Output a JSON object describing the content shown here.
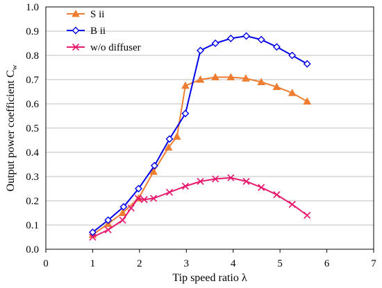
{
  "chart_data": {
    "type": "line",
    "xlabel": "Tip speed  ratio λ",
    "ylabel": "Output power coefficient C",
    "ylabel_sub": "w",
    "xlim": [
      0,
      7
    ],
    "ylim": [
      0,
      1.0
    ],
    "x_ticks": [
      "0",
      "1",
      "2",
      "3",
      "4",
      "5",
      "6",
      "7"
    ],
    "y_ticks": [
      "0.0",
      "0.1",
      "0.2",
      "0.3",
      "0.4",
      "0.5",
      "0.6",
      "0.7",
      "0.8",
      "0.9",
      "1.0"
    ],
    "grid": "horizontal",
    "legend_position": "top-left",
    "series": [
      {
        "name": "S ii",
        "color": "#ED7D31",
        "marker": "triangle",
        "x": [
          1.0,
          1.33,
          1.64,
          1.98,
          2.3,
          2.62,
          2.8,
          2.98,
          3.3,
          3.62,
          3.95,
          4.27,
          4.6,
          4.93,
          5.26,
          5.58
        ],
        "y": [
          0.06,
          0.105,
          0.15,
          0.21,
          0.32,
          0.42,
          0.465,
          0.675,
          0.7,
          0.71,
          0.71,
          0.705,
          0.69,
          0.67,
          0.645,
          0.61
        ]
      },
      {
        "name": "B ii",
        "color": "#0000E6",
        "marker": "diamond",
        "x": [
          1.0,
          1.33,
          1.66,
          1.98,
          2.32,
          2.64,
          2.98,
          3.3,
          3.62,
          3.95,
          4.28,
          4.6,
          4.93,
          5.26,
          5.58
        ],
        "y": [
          0.07,
          0.12,
          0.175,
          0.25,
          0.345,
          0.455,
          0.56,
          0.82,
          0.85,
          0.87,
          0.88,
          0.865,
          0.835,
          0.8,
          0.765
        ]
      },
      {
        "name": "w/o diffuser",
        "color": "#E6196E",
        "marker": "x",
        "x": [
          1.0,
          1.33,
          1.64,
          1.82,
          1.97,
          2.1,
          2.3,
          2.64,
          2.98,
          3.3,
          3.62,
          3.95,
          4.28,
          4.6,
          4.93,
          5.26,
          5.58
        ],
        "y": [
          0.05,
          0.08,
          0.12,
          0.17,
          0.21,
          0.205,
          0.21,
          0.235,
          0.26,
          0.28,
          0.29,
          0.295,
          0.28,
          0.255,
          0.225,
          0.185,
          0.14
        ]
      }
    ]
  }
}
